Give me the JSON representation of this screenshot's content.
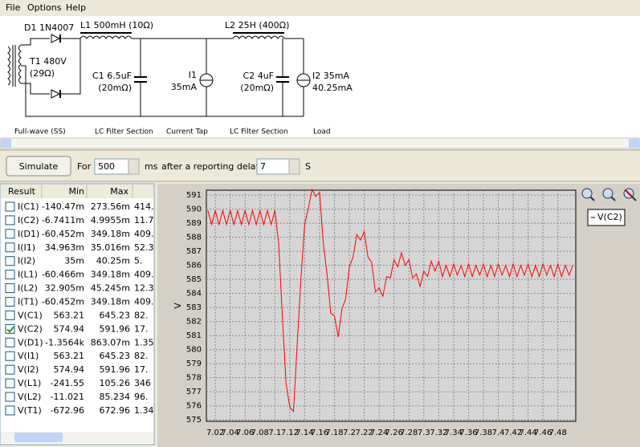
{
  "menu": [
    "File",
    "Options",
    "Help"
  ],
  "schematic": {
    "labels": [
      "D1 1N4007",
      "L1 500mH (10Ω)",
      "L2 25H (400Ω)",
      "T1 480V",
      "(29Ω)",
      "C1 6.5uF",
      "(20mΩ)",
      "I1",
      "35mA",
      "C2 4uF",
      "(20mΩ)",
      "I2 35mA",
      "40.25mA"
    ],
    "sections": [
      "Full-wave (SS)",
      "LC Filter Section",
      "Current Tap",
      "LC Filter Section",
      "Load"
    ]
  },
  "controls": {
    "button": "Simulate",
    "for": "For",
    "duration": 500,
    "duration_unit": "ms",
    "delay_label": "after a reporting delay of",
    "delay": 7,
    "delay_unit": "S"
  },
  "table": {
    "columns": [
      "Result",
      "Min",
      "Max"
    ],
    "rows": [
      {
        "checked": false,
        "cells": [
          "I(C1)",
          "-140.47m",
          "273.56m",
          "414."
        ]
      },
      {
        "checked": false,
        "cells": [
          "I(C2)",
          "-6.7411m",
          "4.9955m",
          "11.7"
        ]
      },
      {
        "checked": false,
        "cells": [
          "I(D1)",
          "-60.452m",
          "349.18m",
          "409."
        ]
      },
      {
        "checked": false,
        "cells": [
          "I(I1)",
          "34.963m",
          "35.016m",
          "52.3"
        ]
      },
      {
        "checked": false,
        "cells": [
          "I(I2)",
          "35m",
          "40.25m",
          "5."
        ]
      },
      {
        "checked": false,
        "cells": [
          "I(L1)",
          "-60.466m",
          "349.18m",
          "409."
        ]
      },
      {
        "checked": false,
        "cells": [
          "I(L2)",
          "32.905m",
          "45.245m",
          "12.3"
        ]
      },
      {
        "checked": false,
        "cells": [
          "I(T1)",
          "-60.452m",
          "349.18m",
          "409."
        ]
      },
      {
        "checked": false,
        "cells": [
          "V(C1)",
          "563.21",
          "645.23",
          "82."
        ]
      },
      {
        "checked": true,
        "cells": [
          "V(C2)",
          "574.94",
          "591.96",
          "17."
        ]
      },
      {
        "checked": false,
        "cells": [
          "V(D1)",
          "-1.3564k",
          "863.07m",
          "1.35"
        ]
      },
      {
        "checked": false,
        "cells": [
          "V(I1)",
          "563.21",
          "645.23",
          "82."
        ]
      },
      {
        "checked": false,
        "cells": [
          "V(I2)",
          "574.94",
          "591.96",
          "17."
        ]
      },
      {
        "checked": false,
        "cells": [
          "V(L1)",
          "-241.55",
          "105.26",
          "346"
        ]
      },
      {
        "checked": false,
        "cells": [
          "V(L2)",
          "-11.021",
          "85.234",
          "96."
        ]
      },
      {
        "checked": false,
        "cells": [
          "V(T1)",
          "-672.96",
          "672.96",
          "1.34"
        ]
      }
    ]
  },
  "chart_data": {
    "type": "line",
    "ylabel": "V",
    "x": [
      7.01,
      7.015,
      7.02,
      7.025,
      7.03,
      7.035,
      7.04,
      7.045,
      7.05,
      7.055,
      7.06,
      7.065,
      7.07,
      7.075,
      7.08,
      7.085,
      7.09,
      7.095,
      7.1,
      7.105,
      7.11,
      7.115,
      7.12,
      7.125,
      7.13,
      7.135,
      7.14,
      7.145,
      7.15,
      7.155,
      7.16,
      7.165,
      7.17,
      7.175,
      7.18,
      7.185,
      7.19,
      7.195,
      7.2,
      7.205,
      7.21,
      7.215,
      7.22,
      7.225,
      7.23,
      7.235,
      7.24,
      7.245,
      7.25,
      7.255,
      7.26,
      7.265,
      7.27,
      7.275,
      7.28,
      7.285,
      7.29,
      7.295,
      7.3,
      7.305,
      7.31,
      7.315,
      7.32,
      7.325,
      7.33,
      7.335,
      7.34,
      7.345,
      7.35,
      7.355,
      7.36,
      7.365,
      7.37,
      7.375,
      7.38,
      7.385,
      7.39,
      7.395,
      7.4,
      7.405,
      7.41,
      7.415,
      7.42,
      7.425,
      7.43,
      7.435,
      7.44,
      7.445,
      7.45,
      7.455,
      7.46,
      7.465,
      7.47,
      7.475,
      7.48,
      7.485,
      7.49,
      7.495,
      7.5
    ],
    "series": [
      {
        "name": "V(C2)",
        "color": "#ff0000",
        "values": [
          589.9,
          588.9,
          589.9,
          588.9,
          589.9,
          588.9,
          589.9,
          588.9,
          589.9,
          588.9,
          589.9,
          588.9,
          589.9,
          588.9,
          589.9,
          588.9,
          589.9,
          588.9,
          589.9,
          587.6,
          582.4,
          577.6,
          575.9,
          575.6,
          580.4,
          585.1,
          588.9,
          590.1,
          591.4,
          590.9,
          591.2,
          587.6,
          585.4,
          582.6,
          582.4,
          580.9,
          582.9,
          583.6,
          585.9,
          586.6,
          588.2,
          587.8,
          588.4,
          586.6,
          586.2,
          584.1,
          584.4,
          583.8,
          585.2,
          585.1,
          586.4,
          585.9,
          586.9,
          586,
          586.4,
          585.1,
          585.4,
          584.5,
          585.6,
          585.2,
          586.3,
          585.6,
          586.3,
          585.2,
          586,
          585.2,
          586.1,
          585.3,
          586,
          585.2,
          586.1,
          585.2,
          586,
          585.3,
          586.1,
          585.2,
          586,
          585.2,
          586.1,
          585.3,
          586,
          585.2,
          586.1,
          585.2,
          586,
          585.3,
          586.1,
          585.2,
          586,
          585.2,
          586.1,
          585.3,
          586,
          585.2,
          586.1,
          585.2,
          586,
          585.3,
          586
        ]
      }
    ],
    "xlim": [
      7.008,
      7.504
    ],
    "ylim": [
      574.9,
      591.35
    ],
    "xticks": [
      7.02,
      7.04,
      7.06,
      7.08,
      7.1,
      7.12,
      7.14,
      7.16,
      7.18,
      7.2,
      7.22,
      7.24,
      7.26,
      7.28,
      7.3,
      7.32,
      7.34,
      7.36,
      7.38,
      7.4,
      7.42,
      7.44,
      7.46,
      7.48
    ],
    "yticks": [
      575,
      576,
      577,
      578,
      579,
      580,
      581,
      582,
      583,
      584,
      585,
      586,
      587,
      588,
      589,
      590,
      591
    ],
    "grid": true
  }
}
